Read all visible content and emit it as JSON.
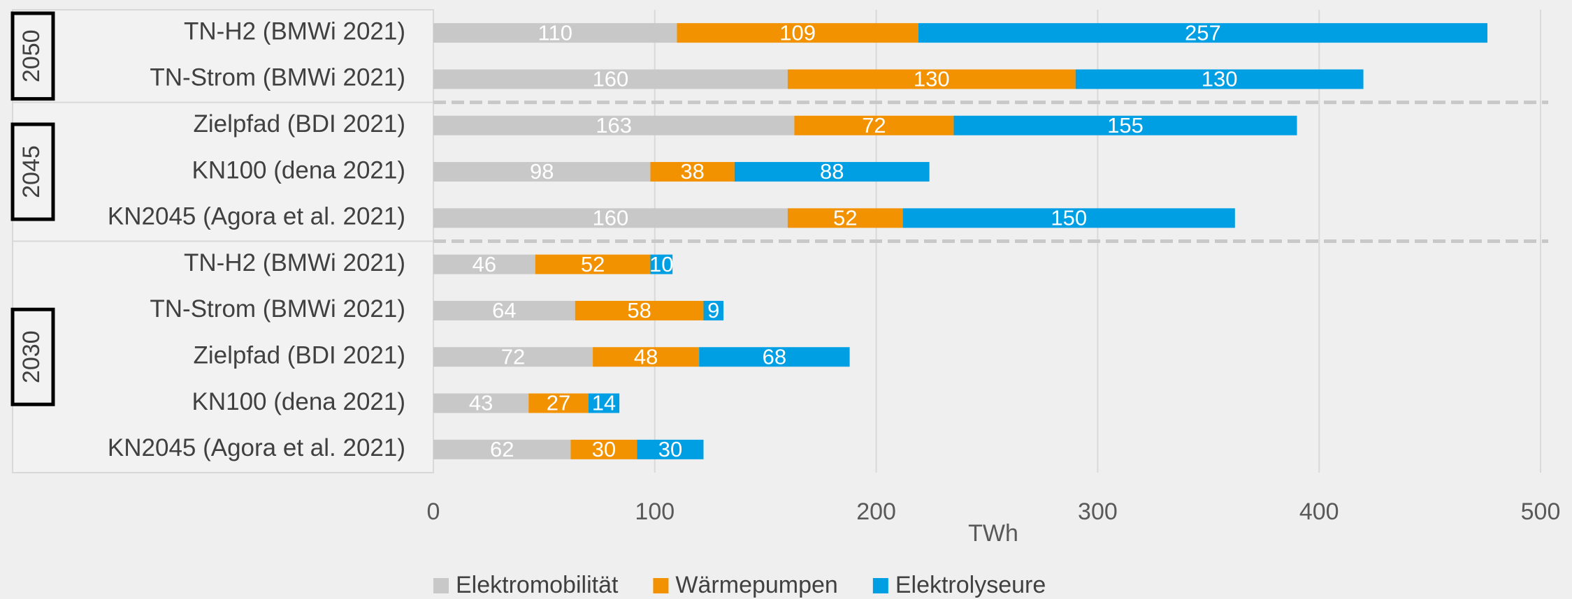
{
  "chart_data": {
    "type": "bar",
    "orientation": "horizontal",
    "stacked": true,
    "x_label": "TWh",
    "categories": [
      "TN-H2 (BMWi 2021)",
      "TN-Strom (BMWi 2021)",
      "Zielpfad (BDI 2021)",
      "KN100 (dena 2021)",
      "KN2045 (Agora et al. 2021)",
      "TN-H2 (BMWi 2021)",
      "TN-Strom (BMWi 2021)",
      "Zielpfad (BDI 2021)",
      "KN100 (dena 2021)",
      "KN2045 (Agora et al. 2021)"
    ],
    "groups": [
      "2050",
      "2050",
      "2045",
      "2045",
      "2045",
      "2030",
      "2030",
      "2030",
      "2030",
      "2030"
    ],
    "series": [
      {
        "name": "Elektromobilität",
        "color": "#c8c8c8",
        "values": [
          110,
          160,
          163,
          98,
          160,
          46,
          64,
          72,
          43,
          62
        ]
      },
      {
        "name": "Wärmepumpen",
        "color": "#f39200",
        "values": [
          109,
          130,
          72,
          38,
          52,
          52,
          58,
          48,
          27,
          30
        ]
      },
      {
        "name": "Elektrolyseure",
        "color": "#009fe3",
        "values": [
          257,
          130,
          155,
          88,
          150,
          10,
          9,
          68,
          14,
          30
        ]
      }
    ],
    "xlim": [
      0,
      500
    ],
    "xticks": [
      0,
      100,
      200,
      300,
      400,
      500
    ],
    "grid": true,
    "legend": "bottom"
  }
}
